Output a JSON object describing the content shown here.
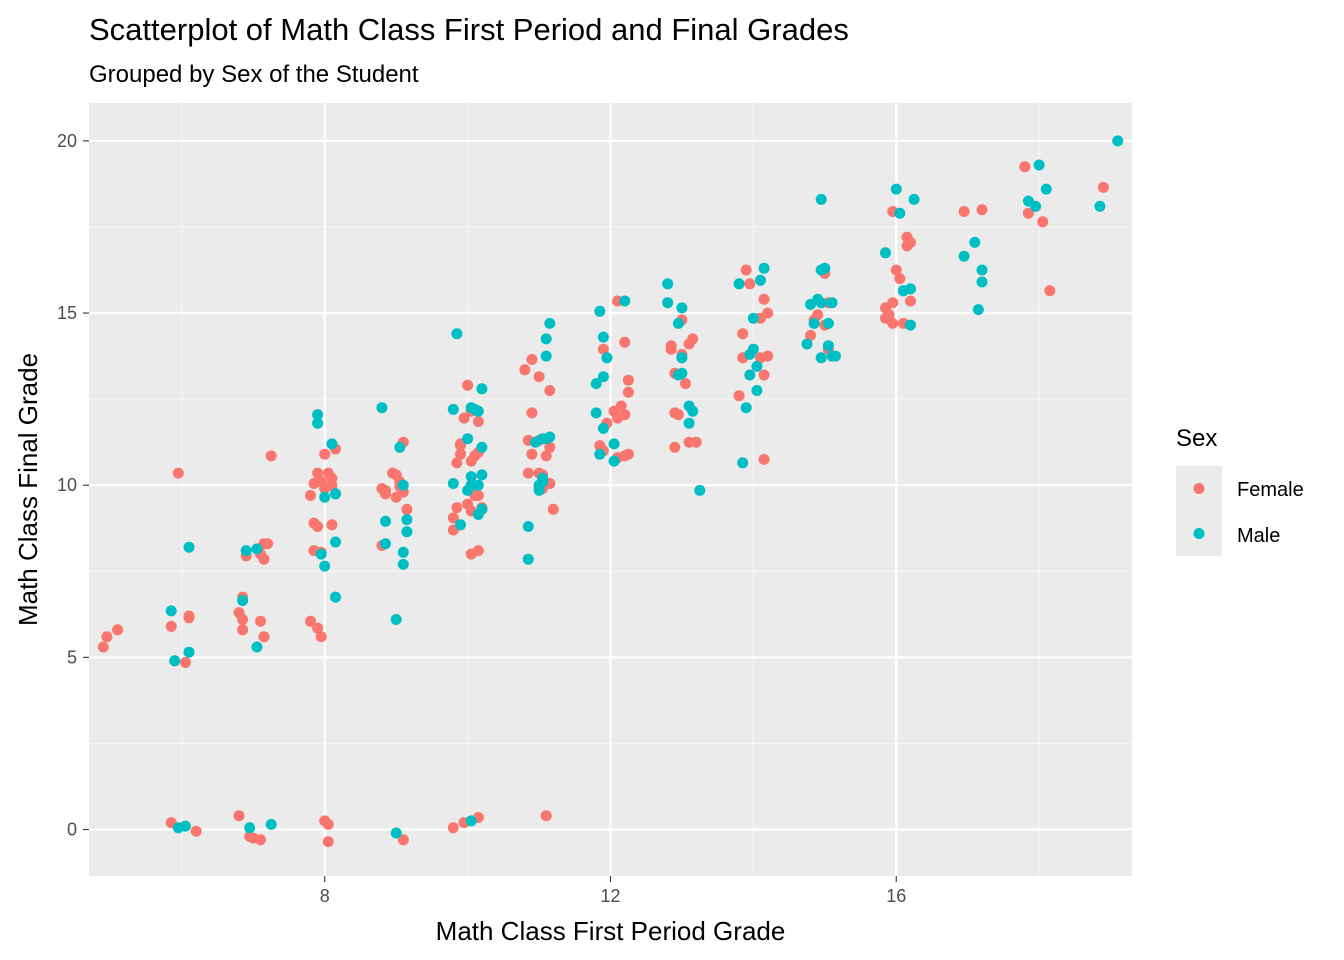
{
  "chart_data": {
    "type": "scatter",
    "title": "Scatterplot of Math Class First Period and Final Grades",
    "subtitle": "Grouped by Sex of the Student",
    "xlabel": "Math Class First Period Grade",
    "ylabel": "Math Class Final Grade",
    "xlim": [
      4.7,
      19.3
    ],
    "ylim": [
      -1.35,
      21.1
    ],
    "x_ticks": [
      8,
      12,
      16
    ],
    "y_ticks": [
      0,
      5,
      10,
      15,
      20
    ],
    "grid": true,
    "legend": {
      "title": "Sex",
      "position": "right"
    },
    "series": [
      {
        "name": "Female",
        "color": "#F8766D",
        "points": [
          [
            4.9,
            5.3
          ],
          [
            4.95,
            5.6
          ],
          [
            5.1,
            5.8
          ],
          [
            5.85,
            0.2
          ],
          [
            5.85,
            5.9
          ],
          [
            5.95,
            10.35
          ],
          [
            6.05,
            4.85
          ],
          [
            6.1,
            6.2
          ],
          [
            6.1,
            6.15
          ],
          [
            6.2,
            -0.05
          ],
          [
            6.8,
            0.4
          ],
          [
            6.8,
            6.3
          ],
          [
            6.85,
            6.1
          ],
          [
            6.85,
            5.8
          ],
          [
            6.85,
            6.75
          ],
          [
            6.9,
            7.95
          ],
          [
            6.95,
            -0.2
          ],
          [
            7.0,
            -0.25
          ],
          [
            7.1,
            -0.3
          ],
          [
            7.1,
            8.0
          ],
          [
            7.1,
            6.05
          ],
          [
            7.15,
            8.3
          ],
          [
            7.15,
            5.6
          ],
          [
            7.15,
            7.85
          ],
          [
            7.2,
            8.3
          ],
          [
            7.25,
            10.85
          ],
          [
            7.8,
            6.05
          ],
          [
            7.8,
            9.7
          ],
          [
            7.85,
            8.9
          ],
          [
            7.85,
            8.1
          ],
          [
            7.85,
            10.05
          ],
          [
            7.9,
            5.85
          ],
          [
            7.9,
            10.35
          ],
          [
            7.9,
            8.8
          ],
          [
            7.95,
            5.6
          ],
          [
            7.95,
            8.05
          ],
          [
            7.95,
            10.1
          ],
          [
            8.0,
            0.25
          ],
          [
            8.0,
            9.9
          ],
          [
            8.0,
            10.9
          ],
          [
            8.05,
            0.15
          ],
          [
            8.05,
            -0.35
          ],
          [
            8.05,
            10.35
          ],
          [
            8.1,
            10.2
          ],
          [
            8.1,
            8.85
          ],
          [
            8.1,
            10.0
          ],
          [
            8.15,
            11.05
          ],
          [
            8.15,
            9.75
          ],
          [
            8.8,
            9.9
          ],
          [
            8.8,
            8.25
          ],
          [
            8.85,
            9.85
          ],
          [
            8.85,
            9.75
          ],
          [
            8.95,
            10.35
          ],
          [
            9.0,
            10.3
          ],
          [
            9.0,
            9.65
          ],
          [
            9.05,
            10.1
          ],
          [
            9.05,
            9.95
          ],
          [
            9.1,
            9.8
          ],
          [
            9.1,
            -0.3
          ],
          [
            9.1,
            11.25
          ],
          [
            9.15,
            9.3
          ],
          [
            9.8,
            0.05
          ],
          [
            9.8,
            8.7
          ],
          [
            9.8,
            9.05
          ],
          [
            9.85,
            9.35
          ],
          [
            9.85,
            10.65
          ],
          [
            9.9,
            11.15
          ],
          [
            9.9,
            10.9
          ],
          [
            9.9,
            11.2
          ],
          [
            9.95,
            11.95
          ],
          [
            9.95,
            0.2
          ],
          [
            10.0,
            9.45
          ],
          [
            10.0,
            12.9
          ],
          [
            10.05,
            9.25
          ],
          [
            10.05,
            8.0
          ],
          [
            10.05,
            12.15
          ],
          [
            10.05,
            10.7
          ],
          [
            10.1,
            9.7
          ],
          [
            10.1,
            10.85
          ],
          [
            10.15,
            8.1
          ],
          [
            10.15,
            10.95
          ],
          [
            10.15,
            0.35
          ],
          [
            10.15,
            11.85
          ],
          [
            10.15,
            9.7
          ],
          [
            10.2,
            9.35
          ],
          [
            10.8,
            13.35
          ],
          [
            10.85,
            11.3
          ],
          [
            10.85,
            10.35
          ],
          [
            10.9,
            12.1
          ],
          [
            10.9,
            13.65
          ],
          [
            10.9,
            10.9
          ],
          [
            11.0,
            13.15
          ],
          [
            11.0,
            11.3
          ],
          [
            11.0,
            10.35
          ],
          [
            11.0,
            9.95
          ],
          [
            11.05,
            10.3
          ],
          [
            11.05,
            9.9
          ],
          [
            11.1,
            0.4
          ],
          [
            11.1,
            10.85
          ],
          [
            11.15,
            11.1
          ],
          [
            11.15,
            12.75
          ],
          [
            11.15,
            10.05
          ],
          [
            11.2,
            9.3
          ],
          [
            11.85,
            11.15
          ],
          [
            11.9,
            11.0
          ],
          [
            11.9,
            13.95
          ],
          [
            11.95,
            11.8
          ],
          [
            12.05,
            12.15
          ],
          [
            12.1,
            15.35
          ],
          [
            12.1,
            11.95
          ],
          [
            12.1,
            10.8
          ],
          [
            12.15,
            12.3
          ],
          [
            12.2,
            12.05
          ],
          [
            12.2,
            14.15
          ],
          [
            12.2,
            10.85
          ],
          [
            12.25,
            13.05
          ],
          [
            12.25,
            12.7
          ],
          [
            12.25,
            10.9
          ],
          [
            12.85,
            14.05
          ],
          [
            12.85,
            13.95
          ],
          [
            12.9,
            12.1
          ],
          [
            12.9,
            11.1
          ],
          [
            12.9,
            13.25
          ],
          [
            12.95,
            12.05
          ],
          [
            13.0,
            14.8
          ],
          [
            13.0,
            13.8
          ],
          [
            13.05,
            12.95
          ],
          [
            13.1,
            14.1
          ],
          [
            13.1,
            11.25
          ],
          [
            13.15,
            14.25
          ],
          [
            13.2,
            11.25
          ],
          [
            13.8,
            12.6
          ],
          [
            13.85,
            14.4
          ],
          [
            13.85,
            13.7
          ],
          [
            13.9,
            16.25
          ],
          [
            13.95,
            15.85
          ],
          [
            14.1,
            13.7
          ],
          [
            14.1,
            14.85
          ],
          [
            14.15,
            15.4
          ],
          [
            14.15,
            13.2
          ],
          [
            14.15,
            10.75
          ],
          [
            14.2,
            13.75
          ],
          [
            14.2,
            15.0
          ],
          [
            14.8,
            14.35
          ],
          [
            14.85,
            14.8
          ],
          [
            14.9,
            14.95
          ],
          [
            15.0,
            16.15
          ],
          [
            15.0,
            14.65
          ],
          [
            15.05,
            13.95
          ],
          [
            15.05,
            15.3
          ],
          [
            15.85,
            14.85
          ],
          [
            15.85,
            15.15
          ],
          [
            15.9,
            14.95
          ],
          [
            15.95,
            17.95
          ],
          [
            15.95,
            14.7
          ],
          [
            15.95,
            15.3
          ],
          [
            16.0,
            16.25
          ],
          [
            16.05,
            16.0
          ],
          [
            16.1,
            14.7
          ],
          [
            16.15,
            17.2
          ],
          [
            16.15,
            16.95
          ],
          [
            16.2,
            15.35
          ],
          [
            16.2,
            17.05
          ],
          [
            16.95,
            17.95
          ],
          [
            17.2,
            18.0
          ],
          [
            17.8,
            19.25
          ],
          [
            17.85,
            17.9
          ],
          [
            18.05,
            17.65
          ],
          [
            18.15,
            15.65
          ],
          [
            18.9,
            18.65
          ]
        ]
      },
      {
        "name": "Male",
        "color": "#00BFC4",
        "points": [
          [
            5.85,
            6.35
          ],
          [
            5.9,
            4.9
          ],
          [
            5.95,
            0.05
          ],
          [
            6.05,
            0.1
          ],
          [
            6.1,
            5.15
          ],
          [
            6.1,
            8.2
          ],
          [
            6.85,
            6.65
          ],
          [
            6.9,
            8.1
          ],
          [
            6.95,
            0.05
          ],
          [
            7.05,
            8.15
          ],
          [
            7.05,
            5.3
          ],
          [
            7.25,
            0.15
          ],
          [
            7.9,
            12.05
          ],
          [
            7.9,
            11.8
          ],
          [
            7.95,
            8.0
          ],
          [
            8.0,
            9.65
          ],
          [
            8.0,
            7.65
          ],
          [
            8.1,
            11.2
          ],
          [
            8.15,
            6.75
          ],
          [
            8.15,
            8.35
          ],
          [
            8.15,
            9.75
          ],
          [
            8.8,
            12.25
          ],
          [
            8.85,
            8.95
          ],
          [
            8.85,
            8.3
          ],
          [
            9.0,
            -0.1
          ],
          [
            9.0,
            6.1
          ],
          [
            9.05,
            11.1
          ],
          [
            9.1,
            8.05
          ],
          [
            9.1,
            7.7
          ],
          [
            9.1,
            10.0
          ],
          [
            9.15,
            8.65
          ],
          [
            9.15,
            9.0
          ],
          [
            9.8,
            12.2
          ],
          [
            9.8,
            10.05
          ],
          [
            9.85,
            14.4
          ],
          [
            9.9,
            8.85
          ],
          [
            10.0,
            11.35
          ],
          [
            10.0,
            9.85
          ],
          [
            10.05,
            10.0
          ],
          [
            10.05,
            12.25
          ],
          [
            10.05,
            10.25
          ],
          [
            10.05,
            0.25
          ],
          [
            10.1,
            12.2
          ],
          [
            10.15,
            12.15
          ],
          [
            10.15,
            9.15
          ],
          [
            10.15,
            10.0
          ],
          [
            10.2,
            11.1
          ],
          [
            10.2,
            12.8
          ],
          [
            10.2,
            10.3
          ],
          [
            10.2,
            9.3
          ],
          [
            10.85,
            8.8
          ],
          [
            10.85,
            7.85
          ],
          [
            10.95,
            11.25
          ],
          [
            11.0,
            9.85
          ],
          [
            11.0,
            10.0
          ],
          [
            11.05,
            10.1
          ],
          [
            11.05,
            10.2
          ],
          [
            11.05,
            11.35
          ],
          [
            11.1,
            11.35
          ],
          [
            11.1,
            13.75
          ],
          [
            11.1,
            14.25
          ],
          [
            11.15,
            14.7
          ],
          [
            11.15,
            11.4
          ],
          [
            11.8,
            12.95
          ],
          [
            11.8,
            12.1
          ],
          [
            11.85,
            15.05
          ],
          [
            11.85,
            10.9
          ],
          [
            11.9,
            14.3
          ],
          [
            11.9,
            13.15
          ],
          [
            11.9,
            11.65
          ],
          [
            11.95,
            13.7
          ],
          [
            12.05,
            10.7
          ],
          [
            12.05,
            11.2
          ],
          [
            12.2,
            15.35
          ],
          [
            12.8,
            15.85
          ],
          [
            12.8,
            15.3
          ],
          [
            12.95,
            13.2
          ],
          [
            12.95,
            14.7
          ],
          [
            13.0,
            13.7
          ],
          [
            13.0,
            15.15
          ],
          [
            13.0,
            13.25
          ],
          [
            13.1,
            12.3
          ],
          [
            13.1,
            11.8
          ],
          [
            13.15,
            12.15
          ],
          [
            13.25,
            9.85
          ],
          [
            13.8,
            15.85
          ],
          [
            13.85,
            10.65
          ],
          [
            13.9,
            12.25
          ],
          [
            13.95,
            13.2
          ],
          [
            13.95,
            13.8
          ],
          [
            14.0,
            13.95
          ],
          [
            14.0,
            14.85
          ],
          [
            14.05,
            13.45
          ],
          [
            14.05,
            12.75
          ],
          [
            14.1,
            15.95
          ],
          [
            14.15,
            16.3
          ],
          [
            14.75,
            14.1
          ],
          [
            14.8,
            15.25
          ],
          [
            14.85,
            14.7
          ],
          [
            14.9,
            15.4
          ],
          [
            14.95,
            15.3
          ],
          [
            14.95,
            16.25
          ],
          [
            14.95,
            18.3
          ],
          [
            14.95,
            13.7
          ],
          [
            15.0,
            16.3
          ],
          [
            15.05,
            14.7
          ],
          [
            15.05,
            14.05
          ],
          [
            15.1,
            15.3
          ],
          [
            15.1,
            13.75
          ],
          [
            15.15,
            13.75
          ],
          [
            15.85,
            16.75
          ],
          [
            16.0,
            18.6
          ],
          [
            16.05,
            17.9
          ],
          [
            16.1,
            15.65
          ],
          [
            16.1,
            15.65
          ],
          [
            16.2,
            15.7
          ],
          [
            16.2,
            14.65
          ],
          [
            16.25,
            18.3
          ],
          [
            16.95,
            16.65
          ],
          [
            17.1,
            17.05
          ],
          [
            17.15,
            15.1
          ],
          [
            17.2,
            16.25
          ],
          [
            17.2,
            15.9
          ],
          [
            17.85,
            18.25
          ],
          [
            17.95,
            18.1
          ],
          [
            18.0,
            19.3
          ],
          [
            18.1,
            18.6
          ],
          [
            18.85,
            18.1
          ],
          [
            19.1,
            20.0
          ]
        ]
      }
    ]
  }
}
